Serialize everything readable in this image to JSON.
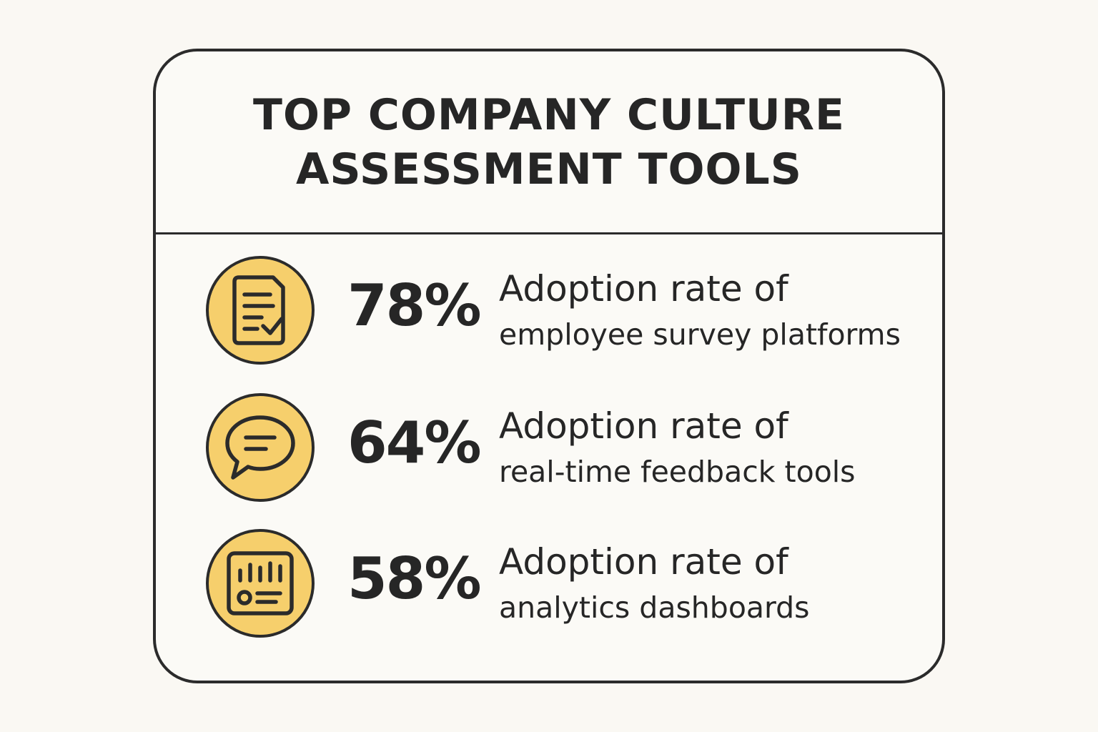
{
  "title": {
    "line1": "TOP COMPANY CULTURE",
    "line2": "ASSESSMENT TOOLS"
  },
  "stats": [
    {
      "percent": "78%",
      "value": 78,
      "label_line1": "Adoption rate of",
      "label_line2": "employee survey platforms",
      "icon": "survey-checklist-icon"
    },
    {
      "percent": "64%",
      "value": 64,
      "label_line1": "Adoption rate of",
      "label_line2": "real-time feedback tools",
      "icon": "speech-bubble-icon"
    },
    {
      "percent": "58%",
      "value": 58,
      "label_line1": "Adoption rate of",
      "label_line2": "analytics dashboards",
      "icon": "analytics-dashboard-icon"
    }
  ],
  "colors": {
    "background": "#faf8f3",
    "icon_fill": "#f6cf6c",
    "ink": "#262626"
  }
}
